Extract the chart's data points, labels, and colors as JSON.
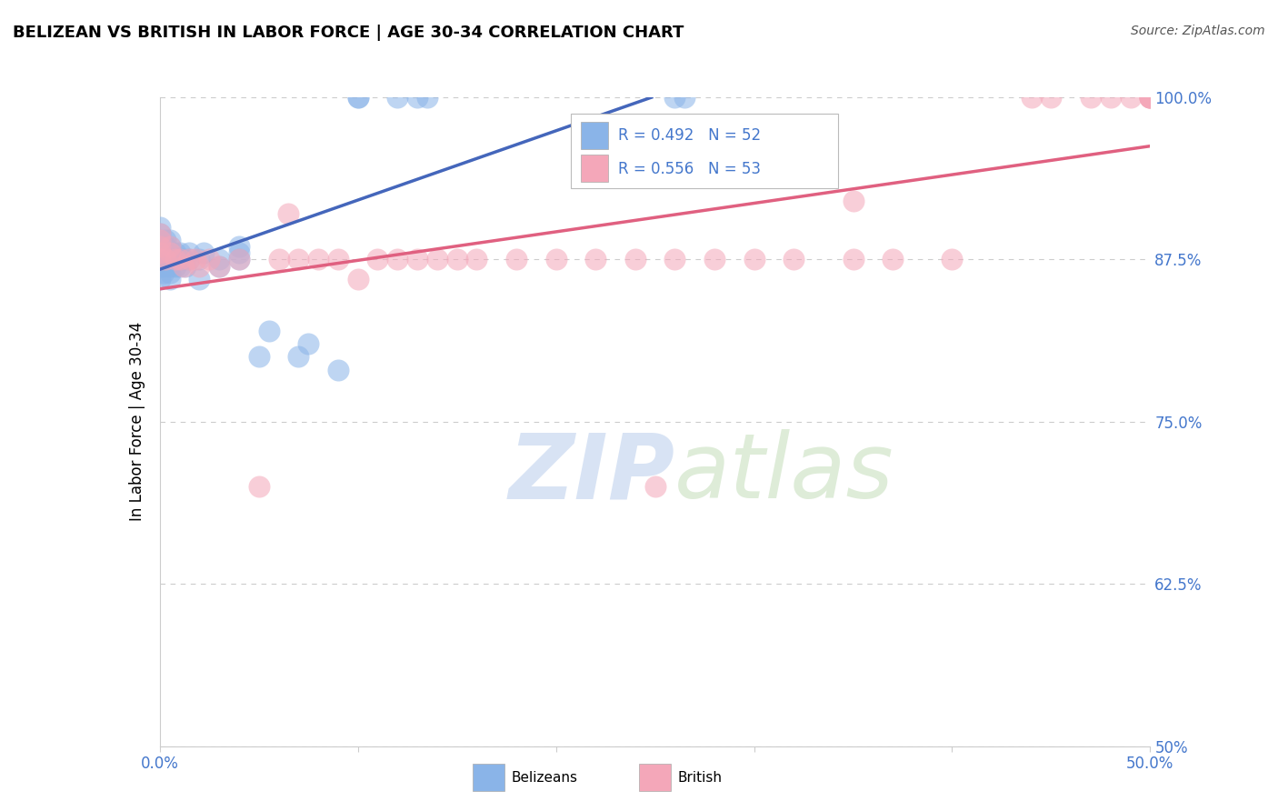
{
  "title": "BELIZEAN VS BRITISH IN LABOR FORCE | AGE 30-34 CORRELATION CHART",
  "source": "Source: ZipAtlas.com",
  "ylabel": "In Labor Force | Age 30-34",
  "xlim": [
    0.0,
    0.5
  ],
  "ylim": [
    0.5,
    1.0
  ],
  "xtick_positions": [
    0.0,
    0.1,
    0.2,
    0.3,
    0.4,
    0.5
  ],
  "xticklabels": [
    "0.0%",
    "",
    "",
    "",
    "",
    "50.0%"
  ],
  "ytick_positions": [
    0.5,
    0.625,
    0.75,
    0.875,
    1.0
  ],
  "yticklabels_right": [
    "50%",
    "62.5%",
    "75.0%",
    "87.5%",
    "100.0%"
  ],
  "belizean_color": "#8AB4E8",
  "british_color": "#F4A7B9",
  "belizean_line_color": "#4466BB",
  "british_line_color": "#E06080",
  "grid_color": "#CCCCCC",
  "axis_color": "#CCCCCC",
  "label_color": "#4477CC",
  "watermark_color": "#D0DCF0",
  "belizean_x": [
    0.0,
    0.0,
    0.0,
    0.0,
    0.0,
    0.0,
    0.0,
    0.0,
    0.002,
    0.002,
    0.003,
    0.003,
    0.003,
    0.003,
    0.003,
    0.005,
    0.005,
    0.005,
    0.005,
    0.005,
    0.005,
    0.005,
    0.007,
    0.008,
    0.008,
    0.01,
    0.01,
    0.01,
    0.012,
    0.013,
    0.015,
    0.015,
    0.02,
    0.02,
    0.022,
    0.03,
    0.03,
    0.04,
    0.04,
    0.04,
    0.05,
    0.055,
    0.07,
    0.075,
    0.09,
    0.1,
    0.1,
    0.12,
    0.13,
    0.135,
    0.26,
    0.265
  ],
  "belizean_y": [
    0.86,
    0.87,
    0.875,
    0.88,
    0.885,
    0.89,
    0.895,
    0.9,
    0.865,
    0.87,
    0.875,
    0.88,
    0.88,
    0.885,
    0.89,
    0.86,
    0.865,
    0.87,
    0.875,
    0.88,
    0.885,
    0.89,
    0.875,
    0.87,
    0.88,
    0.87,
    0.875,
    0.88,
    0.875,
    0.87,
    0.875,
    0.88,
    0.86,
    0.875,
    0.88,
    0.875,
    0.87,
    0.875,
    0.88,
    0.885,
    0.8,
    0.82,
    0.8,
    0.81,
    0.79,
    1.0,
    1.0,
    1.0,
    1.0,
    1.0,
    1.0,
    1.0
  ],
  "british_x": [
    0.0,
    0.0,
    0.0,
    0.0,
    0.0,
    0.003,
    0.005,
    0.005,
    0.008,
    0.01,
    0.012,
    0.015,
    0.018,
    0.02,
    0.025,
    0.03,
    0.04,
    0.05,
    0.06,
    0.065,
    0.07,
    0.08,
    0.09,
    0.1,
    0.11,
    0.12,
    0.13,
    0.14,
    0.15,
    0.16,
    0.18,
    0.2,
    0.22,
    0.24,
    0.25,
    0.26,
    0.28,
    0.3,
    0.32,
    0.35,
    0.35,
    0.37,
    0.4,
    0.44,
    0.45,
    0.47,
    0.48,
    0.49,
    0.5,
    0.5,
    0.5,
    0.5,
    0.5
  ],
  "british_y": [
    0.875,
    0.88,
    0.885,
    0.89,
    0.895,
    0.875,
    0.88,
    0.885,
    0.875,
    0.875,
    0.87,
    0.875,
    0.875,
    0.87,
    0.875,
    0.87,
    0.875,
    0.7,
    0.875,
    0.91,
    0.875,
    0.875,
    0.875,
    0.86,
    0.875,
    0.875,
    0.875,
    0.875,
    0.875,
    0.875,
    0.875,
    0.875,
    0.875,
    0.875,
    0.7,
    0.875,
    0.875,
    0.875,
    0.875,
    0.875,
    0.92,
    0.875,
    0.875,
    1.0,
    1.0,
    1.0,
    1.0,
    1.0,
    1.0,
    1.0,
    1.0,
    1.0,
    1.0
  ]
}
